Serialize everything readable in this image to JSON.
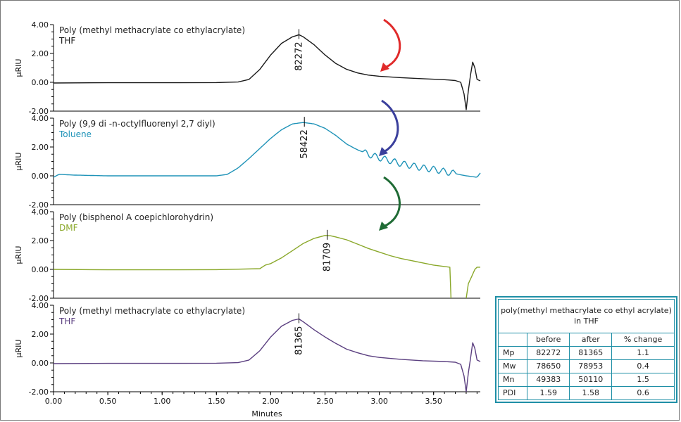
{
  "chart_data": [
    {
      "type": "line",
      "title": "Poly (methyl methacrylate co ethylacrylate)",
      "subtitle": "THF",
      "color": "#1a1a1a",
      "ylabel": "µRIU",
      "ylim": [
        -2.0,
        4.0
      ],
      "yticks": [
        "4.00",
        "2.00",
        "0.00",
        "-2.00"
      ],
      "peak": {
        "x": 2.26,
        "y": 3.3,
        "label": "82272"
      },
      "series": [
        {
          "x": [
            0.0,
            0.5,
            1.0,
            1.5,
            1.7,
            1.8,
            1.9,
            2.0,
            2.1,
            2.2,
            2.26,
            2.3,
            2.4,
            2.5,
            2.6,
            2.7,
            2.8,
            2.9,
            3.0,
            3.2,
            3.4,
            3.6,
            3.7,
            3.75,
            3.78,
            3.8,
            3.82,
            3.84,
            3.86,
            3.88,
            3.9,
            3.93
          ],
          "values": [
            -0.05,
            -0.03,
            -0.03,
            -0.02,
            0.02,
            0.2,
            0.9,
            1.9,
            2.7,
            3.15,
            3.3,
            3.15,
            2.6,
            1.9,
            1.3,
            0.9,
            0.65,
            0.5,
            0.42,
            0.32,
            0.25,
            0.18,
            0.12,
            0.0,
            -0.8,
            -1.9,
            -0.6,
            0.5,
            1.4,
            1.0,
            0.2,
            0.1
          ]
        }
      ]
    },
    {
      "type": "line",
      "title": "Poly (9,9 di -n-octylfluorenyl 2,7 diyl)",
      "subtitle": "Toluene",
      "color": "#1f93b8",
      "ylabel": "µRIU",
      "ylim": [
        -2.0,
        4.0
      ],
      "yticks": [
        "4.00",
        "2.00",
        "0.00",
        "-2.00"
      ],
      "peak": {
        "x": 2.31,
        "y": 3.7,
        "label": "58422"
      },
      "series": [
        {
          "x": [
            0.0,
            0.05,
            0.2,
            0.5,
            1.0,
            1.5,
            1.6,
            1.7,
            1.8,
            1.9,
            2.0,
            2.1,
            2.2,
            2.3,
            2.4,
            2.5,
            2.6,
            2.7,
            2.8,
            2.9,
            3.0,
            3.1,
            3.2,
            3.3,
            3.4,
            3.5,
            3.6,
            3.7,
            3.8,
            3.9,
            3.93
          ],
          "values": [
            -0.1,
            0.1,
            0.05,
            0.0,
            0.0,
            0.0,
            0.1,
            0.55,
            1.2,
            1.9,
            2.6,
            3.2,
            3.6,
            3.7,
            3.6,
            3.3,
            2.8,
            2.2,
            1.8,
            1.5,
            1.25,
            1.05,
            0.85,
            0.7,
            0.55,
            0.45,
            0.3,
            0.15,
            0.0,
            -0.1,
            0.2
          ]
        }
      ]
    },
    {
      "type": "line",
      "title": "Poly (bisphenol A coepichlorohydrin)",
      "subtitle": "DMF",
      "color": "#8aa82a",
      "ylabel": "µRIU",
      "ylim": [
        -2.0,
        4.0
      ],
      "yticks": [
        "4.00",
        "2.00",
        "0.00",
        "-2.00"
      ],
      "peak": {
        "x": 2.52,
        "y": 2.35,
        "label": "81709"
      },
      "series": [
        {
          "x": [
            0.0,
            0.5,
            1.0,
            1.5,
            1.9,
            1.95,
            2.0,
            2.1,
            2.2,
            2.3,
            2.4,
            2.5,
            2.55,
            2.6,
            2.7,
            2.8,
            2.9,
            3.0,
            3.1,
            3.2,
            3.3,
            3.4,
            3.5,
            3.6,
            3.65,
            3.66
          ],
          "values": [
            0.0,
            -0.03,
            -0.03,
            -0.02,
            0.05,
            0.3,
            0.4,
            0.8,
            1.3,
            1.8,
            2.15,
            2.35,
            2.33,
            2.25,
            2.05,
            1.75,
            1.45,
            1.2,
            0.95,
            0.75,
            0.6,
            0.45,
            0.3,
            0.2,
            0.15,
            -2.0
          ]
        },
        {
          "x": [
            3.8,
            3.82,
            3.85,
            3.88,
            3.9,
            3.93
          ],
          "values": [
            -2.0,
            -1.0,
            -0.5,
            0.0,
            0.15,
            0.15
          ]
        }
      ]
    },
    {
      "type": "line",
      "title": "Poly (methyl methacrylate co ethylacrylate)",
      "subtitle": "THF",
      "color": "#5b3f80",
      "ylabel": "µRIU",
      "ylim": [
        -2.0,
        4.0
      ],
      "yticks": [
        "4.00",
        "2.00",
        "0.00",
        "-2.00"
      ],
      "xlabel": "Minutes",
      "xticks": [
        "0.00",
        "0.50",
        "1.00",
        "1.50",
        "2.00",
        "2.50",
        "3.00",
        "3.50"
      ],
      "xlim": [
        0.0,
        3.93
      ],
      "peak": {
        "x": 2.26,
        "y": 3.05,
        "label": "81365"
      },
      "series": [
        {
          "x": [
            0.0,
            0.5,
            1.0,
            1.5,
            1.7,
            1.8,
            1.9,
            2.0,
            2.1,
            2.2,
            2.26,
            2.3,
            2.4,
            2.5,
            2.6,
            2.7,
            2.8,
            2.9,
            3.0,
            3.2,
            3.4,
            3.6,
            3.7,
            3.75,
            3.78,
            3.8,
            3.82,
            3.84,
            3.86,
            3.88,
            3.9,
            3.93
          ],
          "values": [
            -0.05,
            -0.03,
            -0.03,
            -0.02,
            0.02,
            0.2,
            0.85,
            1.8,
            2.55,
            2.95,
            3.05,
            2.85,
            2.3,
            1.8,
            1.35,
            0.95,
            0.7,
            0.5,
            0.38,
            0.25,
            0.15,
            0.1,
            0.05,
            -0.1,
            -0.9,
            -2.0,
            -0.7,
            0.3,
            1.4,
            1.0,
            0.2,
            0.1
          ]
        }
      ]
    }
  ],
  "arrows": [
    {
      "name": "red-arrow",
      "color": "#e02a2a"
    },
    {
      "name": "blue-arrow",
      "color": "#3a3f9c"
    },
    {
      "name": "green-arrow",
      "color": "#1f6b35"
    }
  ],
  "table": {
    "title": "poly(methyl methacrylate co ethyl acrylate)",
    "subtitle": "in THF",
    "columns": [
      "",
      "before",
      "after",
      "% change"
    ],
    "rows": [
      [
        "Mp",
        "82272",
        "81365",
        "1.1"
      ],
      [
        "Mw",
        "78650",
        "78953",
        "0.4"
      ],
      [
        "Mn",
        "49383",
        "50110",
        "1.5"
      ],
      [
        "PDI",
        "1.59",
        "1.58",
        "0.6"
      ]
    ]
  }
}
